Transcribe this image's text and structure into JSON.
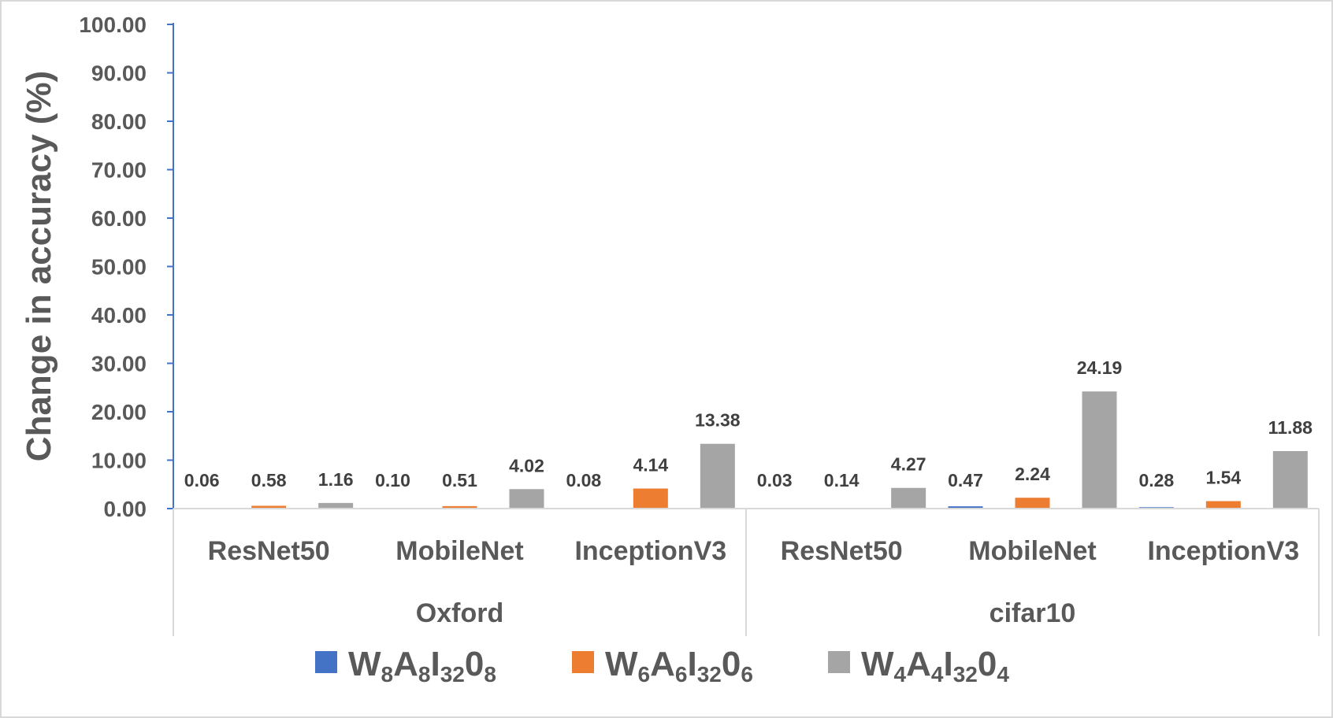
{
  "chart_data": {
    "type": "bar",
    "ylabel": "Change in accuracy (%)",
    "ylim": [
      0,
      100
    ],
    "yticks": [
      "0.00",
      "10.00",
      "20.00",
      "30.00",
      "40.00",
      "50.00",
      "60.00",
      "70.00",
      "80.00",
      "90.00",
      "100.00"
    ],
    "grid": false,
    "legend_position": "bottom",
    "groups": [
      {
        "name": "Oxford",
        "categories": [
          "ResNet50",
          "MobileNet",
          "InceptionV3"
        ]
      },
      {
        "name": "cifar10",
        "categories": [
          "ResNet50",
          "MobileNet",
          "InceptionV3"
        ]
      }
    ],
    "series": [
      {
        "key": "w8",
        "legend": {
          "pre": "W",
          "parts": [
            [
              "8",
              "A"
            ],
            [
              "8",
              "I"
            ],
            [
              "32",
              "0"
            ],
            [
              "8",
              ""
            ]
          ]
        },
        "color": "#4472c4",
        "values": [
          0.06,
          0.1,
          0.08,
          0.03,
          0.47,
          0.28
        ],
        "labels": [
          "0.06",
          "0.10",
          "0.08",
          "0.03",
          "0.47",
          "0.28"
        ]
      },
      {
        "key": "w6",
        "legend": {
          "pre": "W",
          "parts": [
            [
              "6",
              "A"
            ],
            [
              "6",
              "I"
            ],
            [
              "32",
              "0"
            ],
            [
              "6",
              ""
            ]
          ]
        },
        "color": "#ed7d31",
        "values": [
          0.58,
          0.51,
          4.14,
          0.14,
          2.24,
          1.54
        ],
        "labels": [
          "0.58",
          "0.51",
          "4.14",
          "0.14",
          "2.24",
          "1.54"
        ]
      },
      {
        "key": "w4",
        "legend": {
          "pre": "W",
          "parts": [
            [
              "4",
              "A"
            ],
            [
              "4",
              "I"
            ],
            [
              "32",
              "0"
            ],
            [
              "4",
              ""
            ]
          ]
        },
        "color": "#a5a5a5",
        "values": [
          1.16,
          4.02,
          13.38,
          4.27,
          24.19,
          11.88
        ],
        "labels": [
          "1.16",
          "4.02",
          "13.38",
          "4.27",
          "24.19",
          "11.88"
        ]
      }
    ]
  },
  "colors": {
    "axis": "#4472c4",
    "text": "#595959",
    "divider": "#d9d9d9"
  }
}
